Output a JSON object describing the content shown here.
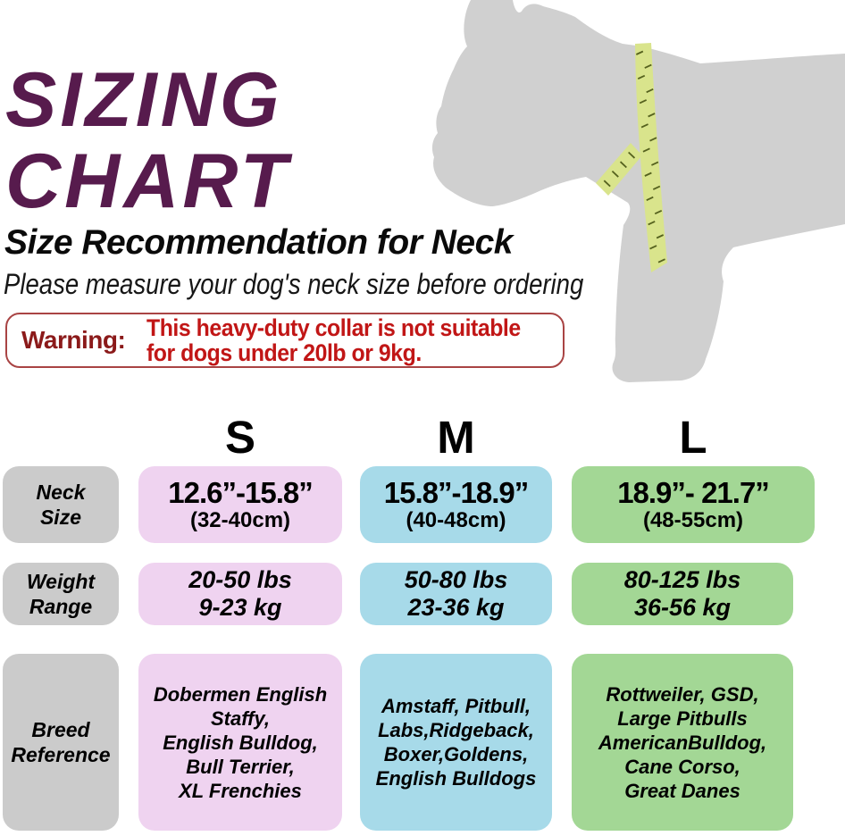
{
  "header": {
    "title": "SIZING\nCHART",
    "subtitle": "Size Recommendation for Neck",
    "tagline": "Please measure your dog's neck size before ordering"
  },
  "warning": {
    "label": "Warning:",
    "message": "This heavy-duty collar is not suitable\nfor dogs under 20lb or 9kg."
  },
  "table": {
    "row_labels": {
      "neck": "Neck\nSize",
      "weight": "Weight\nRange",
      "breed": "Breed\nReference"
    },
    "columns": [
      {
        "header": "S",
        "neck_main": "12.6”-15.8”",
        "neck_sub": "(32-40cm)",
        "weight": "20-50 lbs\n9-23 kg",
        "breeds": "Dobermen English\nStaffy,\nEnglish Bulldog,\nBull Terrier,\nXL Frenchies"
      },
      {
        "header": "M",
        "neck_main": "15.8”-18.9”",
        "neck_sub": "(40-48cm)",
        "weight": "50-80 lbs\n23-36 kg",
        "breeds": "Amstaff, Pitbull,\nLabs,Ridgeback,\nBoxer,Goldens,\nEnglish Bulldogs"
      },
      {
        "header": "L",
        "neck_main": "18.9”- 21.7”",
        "neck_sub": "(48-55cm)",
        "weight": "80-125 lbs\n36-56 kg",
        "breeds": "Rottweiler, GSD,\nLarge Pitbulls\nAmericanBulldog,\nCane Corso,\nGreat Danes"
      }
    ]
  },
  "chart_data": {
    "type": "table",
    "title": "SIZING CHART — Size Recommendation for Neck",
    "columns": [
      "S",
      "M",
      "L"
    ],
    "row_headers": [
      "Neck Size",
      "Weight Range",
      "Breed Reference"
    ],
    "cells": {
      "neck_size": [
        "12.6”-15.8” (32-40cm)",
        "15.8”-18.9” (40-48cm)",
        "18.9”- 21.7” (48-55cm)"
      ],
      "weight_range": [
        "20-50 lbs / 9-23 kg",
        "50-80 lbs / 23-36 kg",
        "80-125 lbs / 36-56 kg"
      ],
      "breed_reference": [
        "Dobermen English Staffy, English Bulldog, Bull Terrier, XL Frenchies",
        "Amstaff, Pitbull, Labs,Ridgeback, Boxer,Goldens, English Bulldogs",
        "Rottweiler, GSD, Large Pitbulls AmericanBulldog, Cane Corso, Great Danes"
      ]
    }
  },
  "illustration": {
    "description": "Gray French bulldog silhouette with yellow-green measuring tape around neck and chest"
  },
  "colors": {
    "title": "#571b4d",
    "warning_border": "#a94444",
    "warning_label": "#8b1a1a",
    "warning_text": "#c11616",
    "row_label_bg": "#cbcbcb",
    "size_s_bg": "#efd3f0",
    "size_m_bg": "#a7dae9",
    "size_l_bg": "#a3d795",
    "dog": "#d0d0d0",
    "tape": "#d9e48c",
    "tape_tick": "#55611e"
  }
}
